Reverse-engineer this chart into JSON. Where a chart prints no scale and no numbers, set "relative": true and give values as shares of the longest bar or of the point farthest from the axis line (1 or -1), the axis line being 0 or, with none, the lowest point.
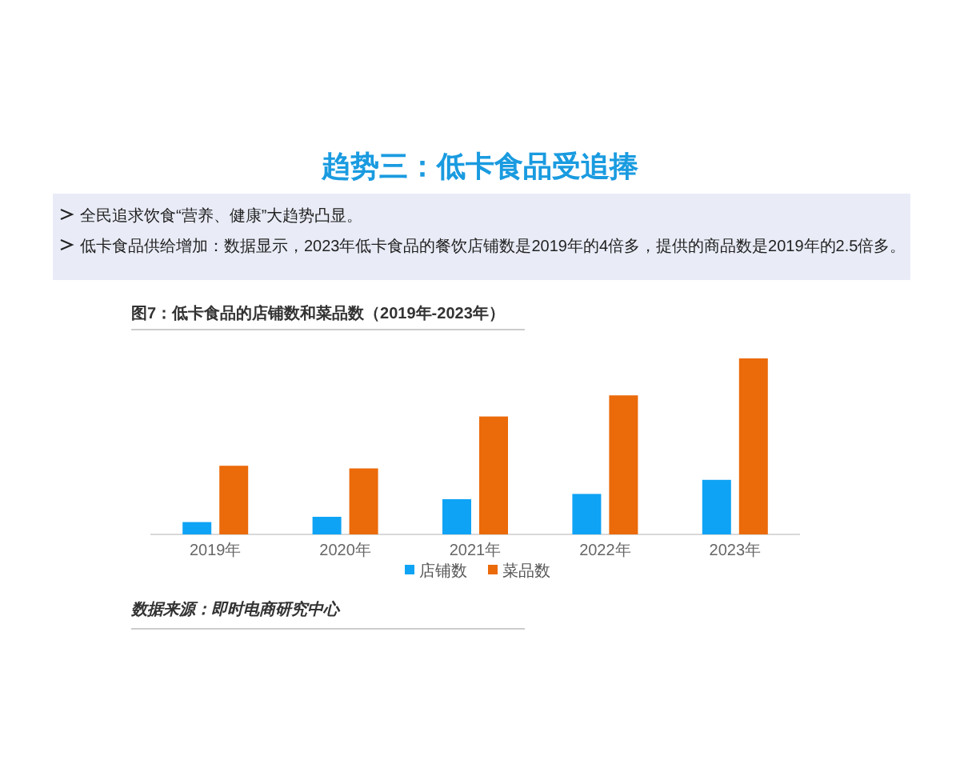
{
  "chart_data": {
    "type": "bar",
    "title": "趋势三：低卡食品受追捧",
    "subtitle": "图7：低卡食品的店铺数和菜品数（2019年-2023年）",
    "relative": true,
    "categories": [
      "2019年",
      "2020年",
      "2021年",
      "2022年",
      "2023年"
    ],
    "series": [
      {
        "name": "店铺数",
        "color": "#0fa3f5",
        "values": [
          0.07,
          0.1,
          0.2,
          0.23,
          0.31
        ]
      },
      {
        "name": "菜品数",
        "color": "#eb6a0a",
        "values": [
          0.39,
          0.375,
          0.67,
          0.79,
          1
        ]
      }
    ],
    "legend": "bottom",
    "annotations": [
      "全民追求饮食“营养、健康”大趋势凸显。",
      "低卡食品供给增加：数据显示，2023年低卡食品的餐饮店铺数是2019年的4倍多，提供的商品数是2019年的2.5倍多。",
      "数据来源：即时电商研究中心"
    ]
  }
}
